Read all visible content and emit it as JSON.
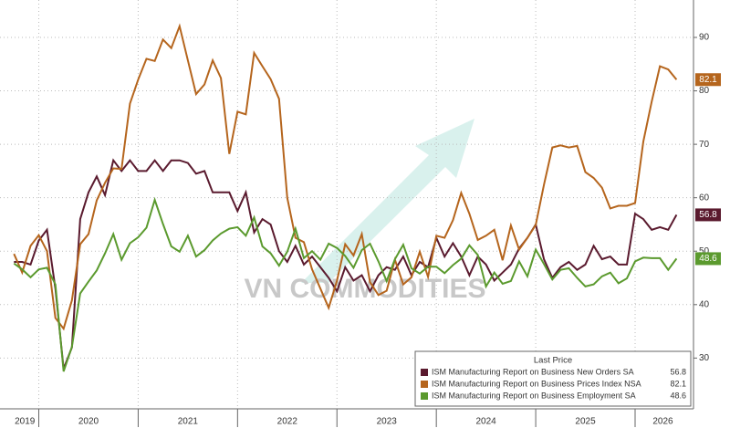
{
  "chart_data": {
    "type": "line",
    "watermark": "VN COMMODITIES",
    "legend_title": "Last Price",
    "x": [
      2019.75,
      2019.833,
      2019.917,
      2020,
      2020.083,
      2020.167,
      2020.25,
      2020.333,
      2020.417,
      2020.5,
      2020.583,
      2020.667,
      2020.75,
      2020.833,
      2020.917,
      2021,
      2021.083,
      2021.167,
      2021.25,
      2021.333,
      2021.417,
      2021.5,
      2021.583,
      2021.667,
      2021.75,
      2021.833,
      2021.917,
      2022,
      2022.083,
      2022.167,
      2022.25,
      2022.333,
      2022.417,
      2022.5,
      2022.583,
      2022.667,
      2022.75,
      2022.833,
      2022.917,
      2023,
      2023.083,
      2023.167,
      2023.25,
      2023.333,
      2023.417,
      2023.5,
      2023.583,
      2023.667,
      2023.75,
      2023.833,
      2023.917,
      2024,
      2024.083,
      2024.167,
      2024.25,
      2024.333,
      2024.417,
      2024.5,
      2024.583,
      2024.667,
      2024.75,
      2024.833,
      2024.917,
      2025,
      2025.083,
      2025.167,
      2025.25,
      2025.333,
      2025.417,
      2025.5,
      2025.583,
      2025.667,
      2025.75,
      2025.833,
      2025.917,
      2026,
      2026.083,
      2026.167,
      2026.25,
      2026.333,
      2026.417
    ],
    "series": [
      {
        "name": "ISM Manufacturing Report on Business New Orders SA",
        "color": "#5a1a2e",
        "values": [
          48,
          48,
          47.5,
          52,
          54,
          43,
          28,
          32,
          56,
          61,
          64,
          60.5,
          67,
          65,
          67,
          65,
          65,
          67,
          65,
          67,
          67,
          66.5,
          64.5,
          65,
          61,
          61,
          61,
          57.5,
          61,
          53.5,
          56,
          55,
          50,
          48,
          51,
          47.5,
          49,
          47,
          45,
          42.5,
          47,
          44.5,
          45.5,
          42.5,
          45.5,
          47,
          46.5,
          49,
          45.5,
          48,
          47,
          52.5,
          49,
          51.5,
          49,
          45.5,
          49,
          47.5,
          44.5,
          46,
          47.5,
          50.5,
          52.5,
          55,
          48.5,
          45,
          47,
          48,
          46.5,
          47.5,
          51,
          48.5,
          49,
          47.5,
          47.5,
          57,
          56,
          54,
          54.5,
          54,
          56.8
        ]
      },
      {
        "name": "ISM Manufacturing Report on Business Prices Index NSA",
        "color": "#b5651d",
        "values": [
          49.5,
          46,
          51,
          53,
          50,
          37.5,
          35.5,
          40.8,
          51.3,
          53.2,
          59.5,
          62.8,
          65.5,
          65.4,
          77.6,
          82.1,
          86,
          85.6,
          89.6,
          88,
          92.1,
          85.7,
          79.4,
          81.2,
          85.7,
          82.4,
          68.2,
          76.1,
          75.6,
          87.1,
          84.6,
          82.2,
          78.5,
          60,
          52.5,
          51.7,
          46.6,
          43,
          39.4,
          44.5,
          51.3,
          49.2,
          53.2,
          44.2,
          41.8,
          42.6,
          48.4,
          43.8,
          45.1,
          49.9,
          45.2,
          52.9,
          52.5,
          55.8,
          60.9,
          57,
          52.1,
          52.9,
          54,
          48.3,
          54.8,
          50.3,
          52.5,
          54.9,
          62.4,
          69.4,
          69.8,
          69.4,
          69.7,
          64.8,
          63.7,
          61.9,
          58,
          58.5,
          58.5,
          59,
          70.5,
          78,
          84.6,
          84,
          82.1
        ]
      },
      {
        "name": "ISM Manufacturing Report on Business Employment SA",
        "color": "#5b9a2e",
        "values": [
          47.7,
          46.6,
          45.1,
          46.6,
          46.9,
          43.8,
          27.5,
          32.1,
          42.1,
          44.3,
          46.4,
          49.6,
          53.2,
          48.4,
          51.5,
          52.6,
          54.4,
          59.6,
          55.1,
          50.9,
          49.9,
          52.9,
          49,
          50.2,
          52,
          53.3,
          54.2,
          54.5,
          52.9,
          56.3,
          50.9,
          49.6,
          47.3,
          49.9,
          54.2,
          48.7,
          50,
          48.4,
          51.4,
          50.6,
          49.1,
          46.9,
          50.2,
          51.4,
          48.1,
          44.4,
          48.5,
          51.2,
          46.8,
          45.8,
          47.1,
          47.1,
          45.9,
          47.4,
          48.6,
          51.1,
          49.3,
          43.4,
          46,
          43.9,
          44.4,
          48.1,
          45.3,
          50.3,
          47.6,
          44.7,
          46.5,
          46.8,
          45,
          43.4,
          43.8,
          45.3,
          46,
          44,
          44.9,
          48.1,
          48.8,
          48.7,
          48.7,
          46.5,
          48.6
        ]
      }
    ],
    "xlim": [
      2019.72,
      2026.56
    ],
    "xticks": [
      2019,
      2020,
      2021,
      2022,
      2023,
      2024,
      2025,
      2026
    ],
    "ylim": [
      20.5,
      97
    ],
    "yticks": [
      30,
      40,
      50,
      60,
      70,
      80,
      90
    ],
    "grid": true
  }
}
